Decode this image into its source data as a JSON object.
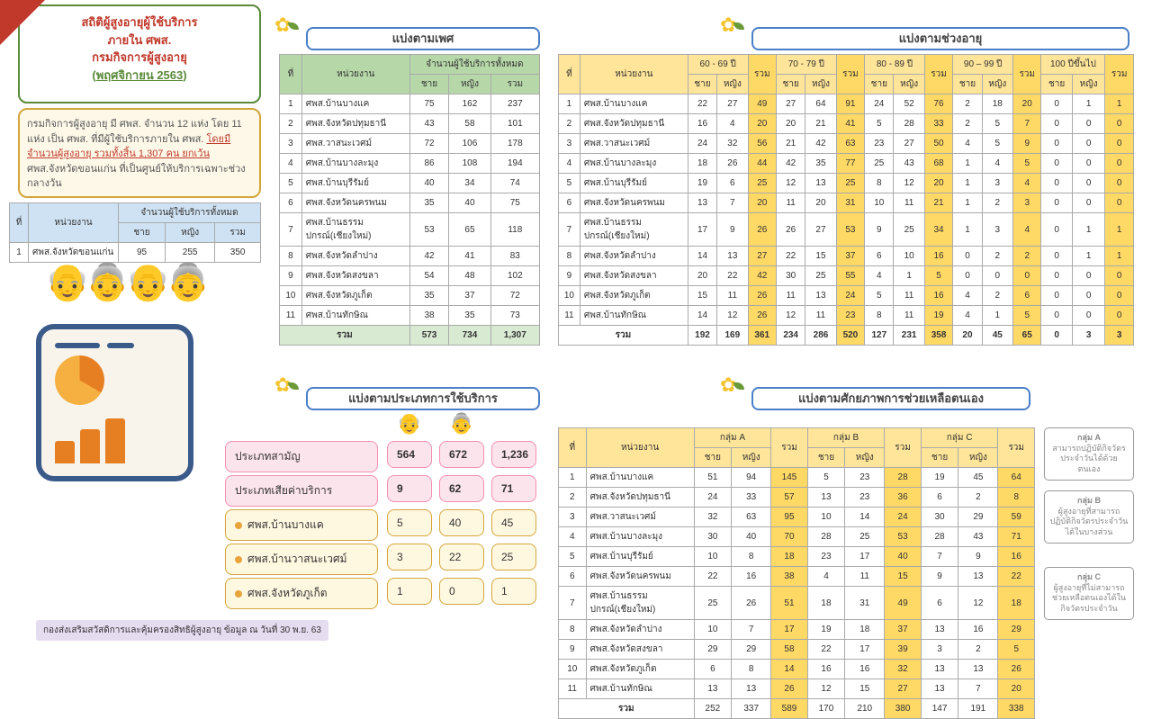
{
  "title": {
    "l1": "สถิติผู้สูงอายุผู้ใช้บริการ",
    "l2": "ภายใน ศพส.",
    "l3": "กรมกิจการผู้สูงอายุ",
    "link": "(พฤศจิกายน 2563)"
  },
  "desc": {
    "pre": "กรมกิจการผู้สูงอายุ มี ศพส. จำนวน 12 แห่ง โดย 11 แห่ง เป็น ศพส. ที่มีผู้ใช้บริการภายใน ศพส.",
    "hl": "โดยมีจำนวนผู้สูงอายุ รวมทั้งสิ้น 1,307 คน ยกเว้น",
    "post": " ศพส.จังหวัดขอนแก่น ที่เป็นศูนย์ให้บริการเฉพาะช่วงกลางวัน"
  },
  "hdr": {
    "gender": "แบ่งตามเพศ",
    "age": "แบ่งตามช่วงอายุ",
    "svc": "แบ่งตามประเภทการใช้บริการ",
    "help": "แบ่งตามศักยภาพการช่วยเหลือตนเอง"
  },
  "cols": {
    "no": "ที่",
    "unit": "หน่วยงาน",
    "allusers": "จำนวนผู้ใช้บริการทั้งหมด",
    "m": "ชาย",
    "f": "หญิง",
    "sum": "รวม",
    "a60": "60 - 69 ปี",
    "a70": "70 - 79 ปี",
    "a80": "80 - 89 ปี",
    "a90": "90 – 99 ปี",
    "a100": "100 ปีขึ้นไป",
    "gA": "กลุ่ม A",
    "gB": "กลุ่ม B",
    "gC": "กลุ่ม C"
  },
  "small": {
    "unit": "ศพส.จังหวัดขอนแก่น",
    "m": "95",
    "f": "255",
    "sum": "350"
  },
  "units": [
    "ศพส.บ้านบางแค",
    "ศพส.จังหวัดปทุมธานี",
    "ศพส.วาสนะเวศม์",
    "ศพส.บ้านบางละมุง",
    "ศพส.บ้านบุรีรัมย์",
    "ศพส.จังหวัดนครพนม",
    "ศพส.บ้านธรรมปกรณ์(เชียงใหม่)",
    "ศพส.จังหวัดลำปาง",
    "ศพส.จังหวัดสงขลา",
    "ศพส.จังหวัดภูเก็ต",
    "ศพส.บ้านทักษิณ"
  ],
  "gender": {
    "rows": [
      [
        "75",
        "162",
        "237"
      ],
      [
        "43",
        "58",
        "101"
      ],
      [
        "72",
        "106",
        "178"
      ],
      [
        "86",
        "108",
        "194"
      ],
      [
        "40",
        "34",
        "74"
      ],
      [
        "35",
        "40",
        "75"
      ],
      [
        "53",
        "65",
        "118"
      ],
      [
        "42",
        "41",
        "83"
      ],
      [
        "54",
        "48",
        "102"
      ],
      [
        "35",
        "37",
        "72"
      ],
      [
        "38",
        "35",
        "73"
      ]
    ],
    "tot": [
      "573",
      "734",
      "1,307"
    ]
  },
  "age": {
    "rows": [
      [
        "22",
        "27",
        "49",
        "27",
        "64",
        "91",
        "24",
        "52",
        "76",
        "2",
        "18",
        "20",
        "0",
        "1",
        "1"
      ],
      [
        "16",
        "4",
        "20",
        "20",
        "21",
        "41",
        "5",
        "28",
        "33",
        "2",
        "5",
        "7",
        "0",
        "0",
        "0"
      ],
      [
        "24",
        "32",
        "56",
        "21",
        "42",
        "63",
        "23",
        "27",
        "50",
        "4",
        "5",
        "9",
        "0",
        "0",
        "0"
      ],
      [
        "18",
        "26",
        "44",
        "42",
        "35",
        "77",
        "25",
        "43",
        "68",
        "1",
        "4",
        "5",
        "0",
        "0",
        "0"
      ],
      [
        "19",
        "6",
        "25",
        "12",
        "13",
        "25",
        "8",
        "12",
        "20",
        "1",
        "3",
        "4",
        "0",
        "0",
        "0"
      ],
      [
        "13",
        "7",
        "20",
        "11",
        "20",
        "31",
        "10",
        "11",
        "21",
        "1",
        "2",
        "3",
        "0",
        "0",
        "0"
      ],
      [
        "17",
        "9",
        "26",
        "26",
        "27",
        "53",
        "9",
        "25",
        "34",
        "1",
        "3",
        "4",
        "0",
        "1",
        "1"
      ],
      [
        "14",
        "13",
        "27",
        "22",
        "15",
        "37",
        "6",
        "10",
        "16",
        "0",
        "2",
        "2",
        "0",
        "1",
        "1"
      ],
      [
        "20",
        "22",
        "42",
        "30",
        "25",
        "55",
        "4",
        "1",
        "5",
        "0",
        "0",
        "0",
        "0",
        "0",
        "0"
      ],
      [
        "15",
        "11",
        "26",
        "11",
        "13",
        "24",
        "5",
        "11",
        "16",
        "4",
        "2",
        "6",
        "0",
        "0",
        "0"
      ],
      [
        "14",
        "12",
        "26",
        "12",
        "11",
        "23",
        "8",
        "11",
        "19",
        "4",
        "1",
        "5",
        "0",
        "0",
        "0"
      ]
    ],
    "tot": [
      "192",
      "169",
      "361",
      "234",
      "286",
      "520",
      "127",
      "231",
      "358",
      "20",
      "45",
      "65",
      "0",
      "3",
      "3"
    ]
  },
  "svc": {
    "type1": "ประเภทสามัญ",
    "type2": "ประเภทเสียค่าบริการ",
    "u1": "ศพส.บ้านบางแค",
    "u2": "ศพส.บ้านวาสนะเวศม์",
    "u3": "ศพส.จังหวัดภูเก็ต",
    "v1": [
      "564",
      "672",
      "1,236"
    ],
    "v2": [
      "9",
      "62",
      "71"
    ],
    "r1": [
      "5",
      "40",
      "45"
    ],
    "r2": [
      "3",
      "22",
      "25"
    ],
    "r3": [
      "1",
      "0",
      "1"
    ]
  },
  "help": {
    "rows": [
      [
        "51",
        "94",
        "145",
        "5",
        "23",
        "28",
        "19",
        "45",
        "64"
      ],
      [
        "24",
        "33",
        "57",
        "13",
        "23",
        "36",
        "6",
        "2",
        "8"
      ],
      [
        "32",
        "63",
        "95",
        "10",
        "14",
        "24",
        "30",
        "29",
        "59"
      ],
      [
        "30",
        "40",
        "70",
        "28",
        "25",
        "53",
        "28",
        "43",
        "71"
      ],
      [
        "10",
        "8",
        "18",
        "23",
        "17",
        "40",
        "7",
        "9",
        "16"
      ],
      [
        "22",
        "16",
        "38",
        "4",
        "11",
        "15",
        "9",
        "13",
        "22"
      ],
      [
        "25",
        "26",
        "51",
        "18",
        "31",
        "49",
        "6",
        "12",
        "18"
      ],
      [
        "10",
        "7",
        "17",
        "19",
        "18",
        "37",
        "13",
        "16",
        "29"
      ],
      [
        "29",
        "29",
        "58",
        "22",
        "17",
        "39",
        "3",
        "2",
        "5"
      ],
      [
        "6",
        "8",
        "14",
        "16",
        "16",
        "32",
        "13",
        "13",
        "26"
      ],
      [
        "13",
        "13",
        "26",
        "12",
        "15",
        "27",
        "13",
        "7",
        "20"
      ]
    ],
    "tot": [
      "252",
      "337",
      "589",
      "170",
      "210",
      "380",
      "147",
      "191",
      "338"
    ]
  },
  "groups": {
    "a": {
      "t": "กลุ่ม A",
      "d": "สามารถปฏิบัติกิจวัตรประจำวันได้ด้วยตนเอง"
    },
    "b": {
      "t": "กลุ่ม B",
      "d": "ผู้สูงอายุที่สามารถปฏิบัติกิจวัตรประจำวันได้ในบางส่วน"
    },
    "c": {
      "t": "กลุ่ม C",
      "d": "ผู้สูงอายุที่ไม่สามารถช่วยเหลือตนเองได้ในกิจวัตรประจำวัน"
    }
  },
  "footer": "กองส่งเสริมสวัสดิการและคุ้มครองสิทธิผู้สูงอายุ   ข้อมูล ณ วันที่ 30 พ.ย. 63"
}
